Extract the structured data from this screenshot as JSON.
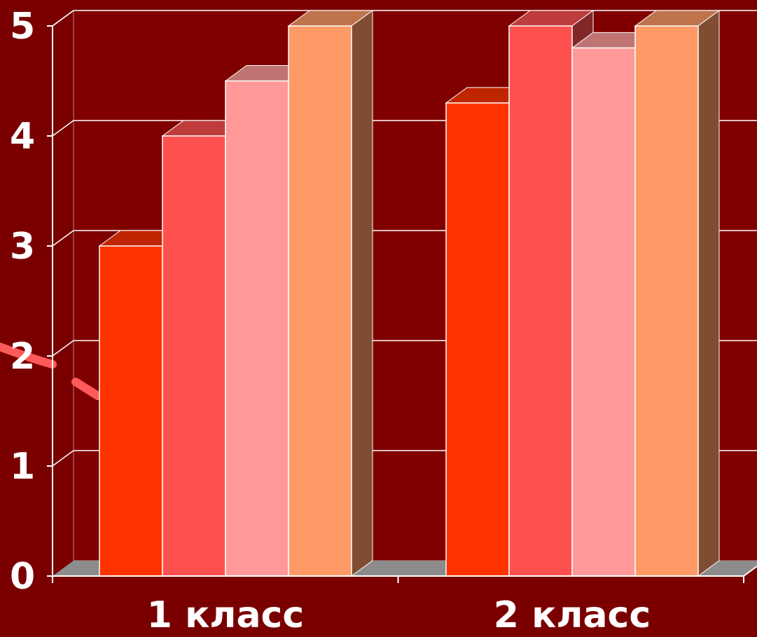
{
  "chart_data": {
    "type": "bar",
    "categories": [
      "1 класс",
      "2 класс"
    ],
    "series": [
      {
        "values": [
          3.0,
          4.3
        ],
        "color": "#ff3300"
      },
      {
        "values": [
          4.0,
          5.0
        ],
        "color": "#ff5050"
      },
      {
        "values": [
          4.5,
          4.8
        ],
        "color": "#ff9999"
      },
      {
        "values": [
          5.0,
          5.0
        ],
        "color": "#ff9966"
      }
    ],
    "ylim": [
      0,
      5
    ],
    "yticks": [
      "0",
      "1",
      "2",
      "3",
      "4",
      "5"
    ],
    "grid": true,
    "background_color": "#7a0000",
    "wall_color": "#800000",
    "floor_color": "#8c8c8c"
  }
}
